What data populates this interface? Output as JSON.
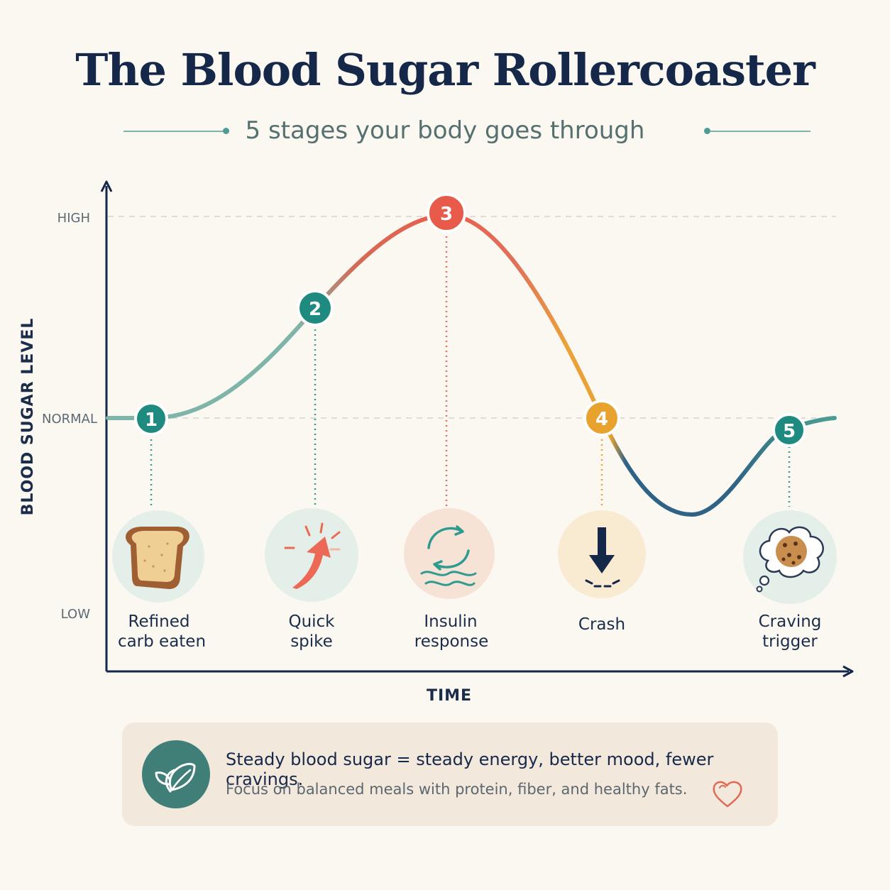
{
  "title": "The Blood Sugar Rollercoaster",
  "subtitle": "5 stages your body goes through",
  "y_axis": {
    "title": "BLOOD SUGAR LEVEL",
    "levels": [
      "HIGH",
      "NORMAL",
      "LOW"
    ]
  },
  "x_axis": {
    "title": "TIME"
  },
  "stages": [
    {
      "number": "1",
      "label_line1": "Refined",
      "label_line2": "carb eaten",
      "level": "normal",
      "icon": "toast-icon",
      "color": "#1f8a80"
    },
    {
      "number": "2",
      "label_line1": "Quick",
      "label_line2": "spike",
      "level": "rising",
      "icon": "spike-arrow-icon",
      "color": "#1f8a80"
    },
    {
      "number": "3",
      "label_line1": "Insulin",
      "label_line2": "response",
      "level": "high",
      "icon": "insulin-cycle-icon",
      "color": "#e85b4a"
    },
    {
      "number": "4",
      "label_line1": "Crash",
      "label_line2": "",
      "level": "normal (falling)",
      "icon": "crash-arrow-icon",
      "color": "#e8a32e"
    },
    {
      "number": "5",
      "label_line1": "Craving",
      "label_line2": "trigger",
      "level": "below normal (recovering)",
      "icon": "cookie-thought-icon",
      "color": "#1f8a80"
    }
  ],
  "callout": {
    "icon": "leaf-icon",
    "main": "Steady blood sugar = steady energy, better mood, fewer cravings.",
    "sub": "Focus on balanced meals with protein, fiber, and healthy fats.",
    "accent_icon": "heart-icon"
  },
  "colors": {
    "navy": "#15284a",
    "teal": "#1f8a80",
    "coral": "#e85b4a",
    "amber": "#e8a32e",
    "deep_blue": "#2e5f80",
    "background": "#fbf8f2"
  }
}
